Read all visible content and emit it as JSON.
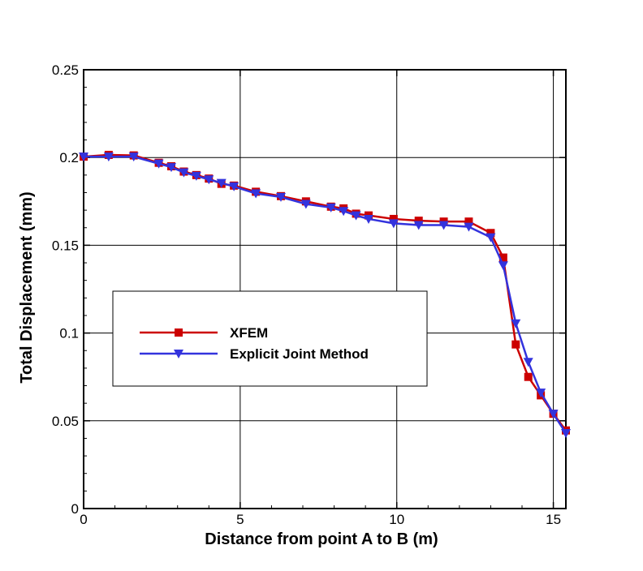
{
  "chart_data": {
    "type": "line",
    "title": "",
    "xlabel": "Distance from point A to B (m)",
    "ylabel": "Total Displacement (mm)",
    "xlim": [
      0,
      15.4
    ],
    "ylim": [
      0,
      0.25
    ],
    "xticks": [
      0,
      5,
      10,
      15
    ],
    "xtick_labels": [
      "0",
      "5",
      "10",
      "15"
    ],
    "yticks": [
      0,
      0.05,
      0.1,
      0.15,
      0.2,
      0.25
    ],
    "ytick_labels": [
      "0",
      "0.05",
      "0.1",
      "0.15",
      "0.2",
      "0.25"
    ],
    "grid": true,
    "legend_position": "center-left",
    "series": [
      {
        "name": "XFEM",
        "color": "#cc0000",
        "marker": "square",
        "x": [
          0,
          0.8,
          1.6,
          2.4,
          2.8,
          3.2,
          3.6,
          4.0,
          4.4,
          4.8,
          5.5,
          6.3,
          7.1,
          7.9,
          8.3,
          8.7,
          9.1,
          9.9,
          10.7,
          11.5,
          12.3,
          13.0,
          13.4,
          13.8,
          14.2,
          14.6,
          15.0,
          15.4
        ],
        "values": [
          0.2005,
          0.2015,
          0.2012,
          0.197,
          0.195,
          0.192,
          0.19,
          0.188,
          0.185,
          0.184,
          0.1805,
          0.178,
          0.175,
          0.172,
          0.171,
          0.168,
          0.167,
          0.165,
          0.164,
          0.1635,
          0.1635,
          0.157,
          0.143,
          0.0935,
          0.075,
          0.0645,
          0.054,
          0.0445
        ]
      },
      {
        "name": "Explicit Joint Method",
        "color": "#3333dd",
        "marker": "triangle-down",
        "x": [
          0,
          0.8,
          1.6,
          2.4,
          2.8,
          3.2,
          3.6,
          4.0,
          4.4,
          4.8,
          5.5,
          6.3,
          7.1,
          7.9,
          8.3,
          8.7,
          9.1,
          9.9,
          10.7,
          11.5,
          12.3,
          13.0,
          13.4,
          13.8,
          14.2,
          14.6,
          15.0,
          15.4
        ],
        "values": [
          0.2005,
          0.2005,
          0.2005,
          0.1965,
          0.1945,
          0.1915,
          0.1895,
          0.1875,
          0.1855,
          0.1835,
          0.1795,
          0.1775,
          0.1735,
          0.1715,
          0.1695,
          0.167,
          0.165,
          0.1625,
          0.1615,
          0.1615,
          0.1605,
          0.1545,
          0.1385,
          0.1055,
          0.0835,
          0.066,
          0.054,
          0.043
        ]
      }
    ]
  }
}
